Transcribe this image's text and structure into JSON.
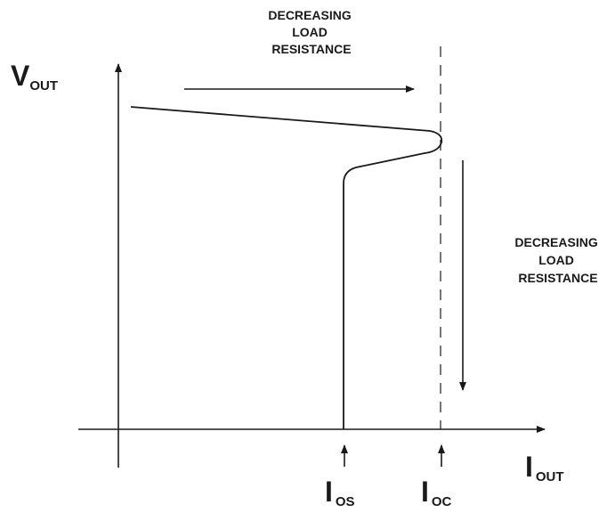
{
  "diagram": {
    "y_axis": {
      "main": "V",
      "sub": "OUT"
    },
    "x_axis": {
      "main": "I",
      "sub": "OUT"
    },
    "markers": {
      "i_os": {
        "main": "I",
        "sub": "OS"
      },
      "i_oc": {
        "main": "I",
        "sub": "OC"
      }
    },
    "annotations": {
      "top": [
        "DECREASING",
        "LOAD",
        "RESISTANCE"
      ],
      "right": [
        "DECREASING",
        "LOAD",
        "RESISTANCE"
      ]
    },
    "colors": {
      "ink": "#1a1a1a",
      "background": "#ffffff"
    }
  }
}
